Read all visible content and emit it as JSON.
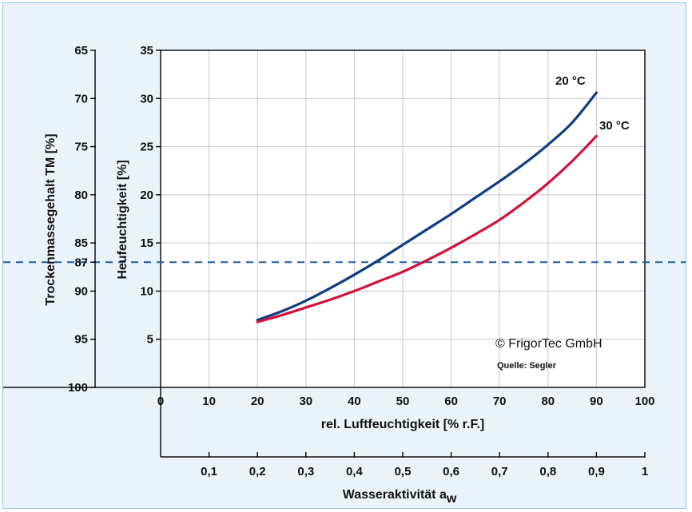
{
  "chart_data": {
    "type": "line",
    "xlabel": "rel. Luftfeuchtigkeit [% r.F.]",
    "xlabel_secondary_main": "Wasseraktivität a",
    "xlabel_secondary_sub": "w",
    "ylabel": "Heufeuchtigkeit [%]",
    "ylabel_secondary": "Trockenmassegehalt TM [%]",
    "xlim": [
      0,
      100
    ],
    "ylim": [
      0,
      35
    ],
    "x_ticks": [
      "0",
      "10",
      "20",
      "30",
      "40",
      "50",
      "60",
      "70",
      "80",
      "90",
      "100"
    ],
    "y_ticks": [
      "5",
      "10",
      "15",
      "20",
      "25",
      "30",
      "35"
    ],
    "aw_ticks": [
      "0,1",
      "0,2",
      "0,3",
      "0,4",
      "0,5",
      "0,6",
      "0,7",
      "0,8",
      "0,9",
      "1"
    ],
    "tm_ticks": [
      {
        "label": "65",
        "y": 35
      },
      {
        "label": "70",
        "y": 30
      },
      {
        "label": "75",
        "y": 25
      },
      {
        "label": "80",
        "y": 20
      },
      {
        "label": "85",
        "y": 15
      },
      {
        "label": "87",
        "y": 13
      },
      {
        "label": "90",
        "y": 10
      },
      {
        "label": "95",
        "y": 5
      },
      {
        "label": "100",
        "y": 0
      }
    ],
    "reference_line": {
      "y": 13,
      "color": "#1f5aa6",
      "style": "dashed"
    },
    "grid": true,
    "series": [
      {
        "name": "20 °C",
        "color": "#0e3d82",
        "x": [
          20,
          25,
          30,
          35,
          40,
          45,
          50,
          55,
          60,
          65,
          70,
          75,
          80,
          85,
          90
        ],
        "y": [
          7,
          7.9,
          9.0,
          10.3,
          11.7,
          13.2,
          14.8,
          16.4,
          18.0,
          19.7,
          21.4,
          23.2,
          25.2,
          27.5,
          30.6
        ]
      },
      {
        "name": "30 °C",
        "color": "#d5103a",
        "x": [
          20,
          25,
          30,
          35,
          40,
          45,
          50,
          55,
          60,
          65,
          70,
          75,
          80,
          85,
          90
        ],
        "y": [
          6.8,
          7.5,
          8.3,
          9.1,
          10.0,
          11.0,
          12.0,
          13.2,
          14.5,
          15.9,
          17.4,
          19.2,
          21.2,
          23.5,
          26.1
        ]
      }
    ],
    "annotations": [
      "© FrigorTec GmbH",
      "Quelle: Segler"
    ]
  }
}
